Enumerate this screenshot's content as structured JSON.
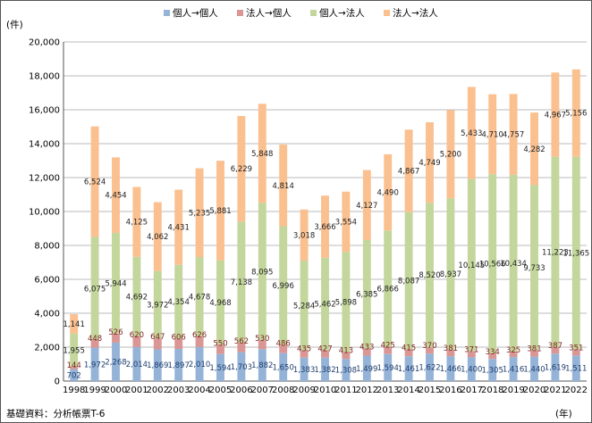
{
  "chart_data": {
    "type": "bar",
    "stacked": true,
    "y_unit_label": "(件)",
    "x_unit_label": "(年)",
    "source_note": "基礎資料：分析帳票T-6",
    "ylim": [
      0,
      20000
    ],
    "yticks": [
      "0",
      "2,000",
      "4,000",
      "6,000",
      "8,000",
      "10,000",
      "12,000",
      "14,000",
      "16,000",
      "18,000",
      "20,000"
    ],
    "ytick_values": [
      0,
      2000,
      4000,
      6000,
      8000,
      10000,
      12000,
      14000,
      16000,
      18000,
      20000
    ],
    "grid": true,
    "legend_position": "top",
    "categories": [
      "1998",
      "1999",
      "2000",
      "2001",
      "2002",
      "2003",
      "2004",
      "2005",
      "2006",
      "2007",
      "2008",
      "2009",
      "2010",
      "2011",
      "2012",
      "2013",
      "2014",
      "2015",
      "2016",
      "2017",
      "2018",
      "2019",
      "2020",
      "2021",
      "2022"
    ],
    "series": [
      {
        "name": "個人→個人",
        "color": "#95b3d7",
        "label_color": "#1f3f6e",
        "values": [
          702,
          1972,
          2268,
          2014,
          1869,
          1897,
          2010,
          1594,
          1703,
          1882,
          1650,
          1383,
          1382,
          1308,
          1499,
          1594,
          1461,
          1622,
          1466,
          1400,
          1305,
          1416,
          1440,
          1619,
          1511
        ],
        "labels": [
          "702",
          "1,972",
          "2,268",
          "2,014",
          "1,869",
          "1,897",
          "2,010",
          "1,594",
          "1,703",
          "1,882",
          "1,650",
          "1,383",
          "1,382",
          "1,308",
          "1,499",
          "1,594",
          "1,461",
          "1,622",
          "1,466",
          "1,400",
          "1,305",
          "1,416",
          "1,440",
          "1,619",
          "1,511"
        ]
      },
      {
        "name": "法人→個人",
        "color": "#d99694",
        "label_color": "#7a1e1e",
        "values": [
          144,
          448,
          526,
          620,
          647,
          606,
          626,
          550,
          562,
          530,
          486,
          435,
          427,
          413,
          433,
          425,
          415,
          370,
          381,
          371,
          334,
          325,
          381,
          387,
          351
        ],
        "labels": [
          "144",
          "448",
          "526",
          "620",
          "647",
          "606",
          "626",
          "550",
          "562",
          "530",
          "486",
          "435",
          "427",
          "413",
          "433",
          "425",
          "415",
          "370",
          "381",
          "371",
          "334",
          "325",
          "381",
          "387",
          "351"
        ]
      },
      {
        "name": "個人→法人",
        "color": "#c3d69b",
        "label_color": "#222222",
        "values": [
          1955,
          6075,
          5944,
          4692,
          3972,
          4354,
          4678,
          4968,
          7138,
          8095,
          6996,
          5284,
          5462,
          5898,
          6385,
          6866,
          8087,
          8520,
          8937,
          10145,
          10566,
          10434,
          9733,
          11223,
          11365
        ],
        "labels": [
          "1,955",
          "6,075",
          "5,944",
          "4,692",
          "3,972",
          "4,354",
          "4,678",
          "4,968",
          "7,138",
          "8,095",
          "6,996",
          "5,284",
          "5,462",
          "5,898",
          "6,385",
          "6,866",
          "8,087",
          "8,520",
          "8,937",
          "10,145",
          "10,566",
          "10,434",
          "9,733",
          "11,223",
          "11,365"
        ]
      },
      {
        "name": "法人→法人",
        "color": "#fac090",
        "label_color": "#222222",
        "values": [
          1141,
          6524,
          4454,
          4125,
          4062,
          4431,
          5235,
          5881,
          6229,
          5848,
          4814,
          3018,
          3666,
          3554,
          4127,
          4490,
          4867,
          4749,
          5200,
          5433,
          4710,
          4757,
          4282,
          4967,
          5156
        ],
        "labels": [
          "1,141",
          "6,524",
          "4,454",
          "4,125",
          "4,062",
          "4,431",
          "5,235",
          "5,881",
          "6,229",
          "5,848",
          "4,814",
          "3,018",
          "3,666",
          "3,554",
          "4,127",
          "4,490",
          "4,867",
          "4,749",
          "5,200",
          "5,433",
          "4,710",
          "4,757",
          "4,282",
          "4,967",
          "5,156"
        ]
      }
    ]
  }
}
